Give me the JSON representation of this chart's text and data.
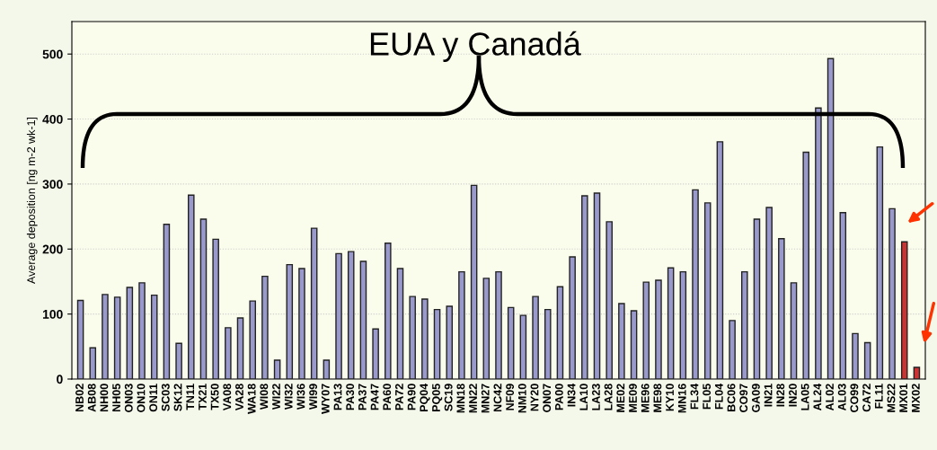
{
  "chart_data": {
    "type": "bar",
    "ylabel": "Average deposition [ng m-2 wk-1]",
    "annotations": [
      "EUA y Canadá"
    ],
    "categories": [
      "NB02",
      "AB08",
      "NH00",
      "NH05",
      "ON03",
      "ON10",
      "ON11",
      "SC03",
      "SK12",
      "TN11",
      "TX21",
      "TX50",
      "VA08",
      "VA28",
      "WA18",
      "WI08",
      "WI22",
      "WI32",
      "WI36",
      "WI99",
      "WY07",
      "PA13",
      "PA30",
      "PA37",
      "PA47",
      "PA60",
      "PA72",
      "PA90",
      "PQ04",
      "PQ05",
      "SC19",
      "MN18",
      "MN22",
      "MN27",
      "NC42",
      "NF09",
      "NM10",
      "NY20",
      "ON07",
      "PA00",
      "IN34",
      "LA10",
      "LA23",
      "LA28",
      "ME02",
      "ME09",
      "ME96",
      "ME98",
      "KY10",
      "MN16",
      "FL34",
      "FL05",
      "FL04",
      "BC06",
      "CO97",
      "GA09",
      "IN21",
      "IN28",
      "IN20",
      "LA05",
      "AL24",
      "AL02",
      "AL03",
      "CO99",
      "CA72",
      "FL11",
      "MS22",
      "MX01",
      "MX02"
    ],
    "values": [
      121,
      48,
      130,
      126,
      141,
      148,
      129,
      238,
      55,
      283,
      246,
      215,
      79,
      94,
      120,
      158,
      29,
      176,
      170,
      232,
      29,
      193,
      196,
      181,
      77,
      209,
      170,
      127,
      123,
      107,
      112,
      165,
      298,
      155,
      165,
      110,
      98,
      127,
      107,
      142,
      188,
      282,
      286,
      242,
      116,
      105,
      149,
      152,
      171,
      165,
      291,
      271,
      365,
      90,
      165,
      246,
      264,
      216,
      148,
      349,
      417,
      493,
      256,
      70,
      56,
      357,
      262,
      211,
      18
    ],
    "colors": [
      "#9999cc",
      "#9999cc",
      "#9999cc",
      "#9999cc",
      "#9999cc",
      "#9999cc",
      "#9999cc",
      "#9999cc",
      "#9999cc",
      "#9999cc",
      "#9999cc",
      "#9999cc",
      "#9999cc",
      "#9999cc",
      "#9999cc",
      "#9999cc",
      "#9999cc",
      "#9999cc",
      "#9999cc",
      "#9999cc",
      "#9999cc",
      "#9999cc",
      "#9999cc",
      "#9999cc",
      "#9999cc",
      "#9999cc",
      "#9999cc",
      "#9999cc",
      "#9999cc",
      "#9999cc",
      "#9999cc",
      "#9999cc",
      "#9999cc",
      "#9999cc",
      "#9999cc",
      "#9999cc",
      "#9999cc",
      "#9999cc",
      "#9999cc",
      "#9999cc",
      "#9999cc",
      "#9999cc",
      "#9999cc",
      "#9999cc",
      "#9999cc",
      "#9999cc",
      "#9999cc",
      "#9999cc",
      "#9999cc",
      "#9999cc",
      "#9999cc",
      "#9999cc",
      "#9999cc",
      "#9999cc",
      "#9999cc",
      "#9999cc",
      "#9999cc",
      "#9999cc",
      "#9999cc",
      "#9999cc",
      "#9999cc",
      "#9999cc",
      "#9999cc",
      "#9999cc",
      "#9999cc",
      "#9999cc",
      "#9999cc",
      "#cc3333",
      "#cc3333"
    ],
    "ylim": [
      0,
      550
    ],
    "yticks": [
      0,
      100,
      200,
      300,
      400,
      500
    ],
    "grid": "y"
  }
}
